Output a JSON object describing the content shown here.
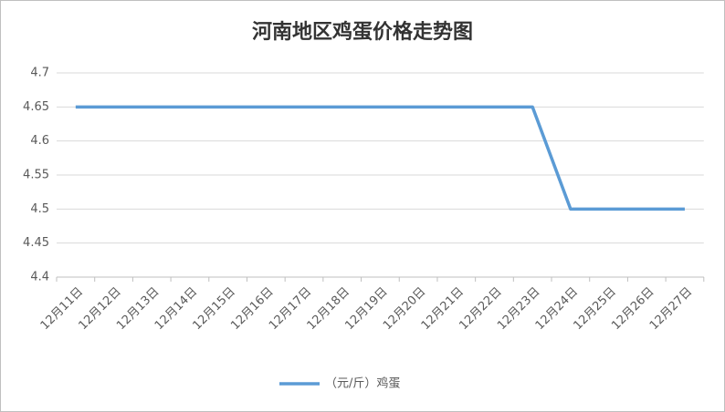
{
  "chart_data": {
    "type": "line",
    "title": "河南地区鸡蛋价格走势图",
    "categories": [
      "12月11日",
      "12月12日",
      "12月13日",
      "12月14日",
      "12月15日",
      "12月16日",
      "12月17日",
      "12月18日",
      "12月19日",
      "12月20日",
      "12月21日",
      "12月22日",
      "12月23日",
      "12月24日",
      "12月25日",
      "12月26日",
      "12月27日"
    ],
    "series": [
      {
        "name": "（元/斤）鸡蛋",
        "color": "#5b9bd5",
        "values": [
          4.65,
          4.65,
          4.65,
          4.65,
          4.65,
          4.65,
          4.65,
          4.65,
          4.65,
          4.65,
          4.65,
          4.65,
          4.65,
          4.5,
          4.5,
          4.5,
          4.5
        ]
      }
    ],
    "ylim": [
      4.4,
      4.7
    ],
    "yticks": [
      4.4,
      4.45,
      4.5,
      4.55,
      4.6,
      4.65,
      4.7
    ],
    "grid": true,
    "legend": "bottom"
  }
}
